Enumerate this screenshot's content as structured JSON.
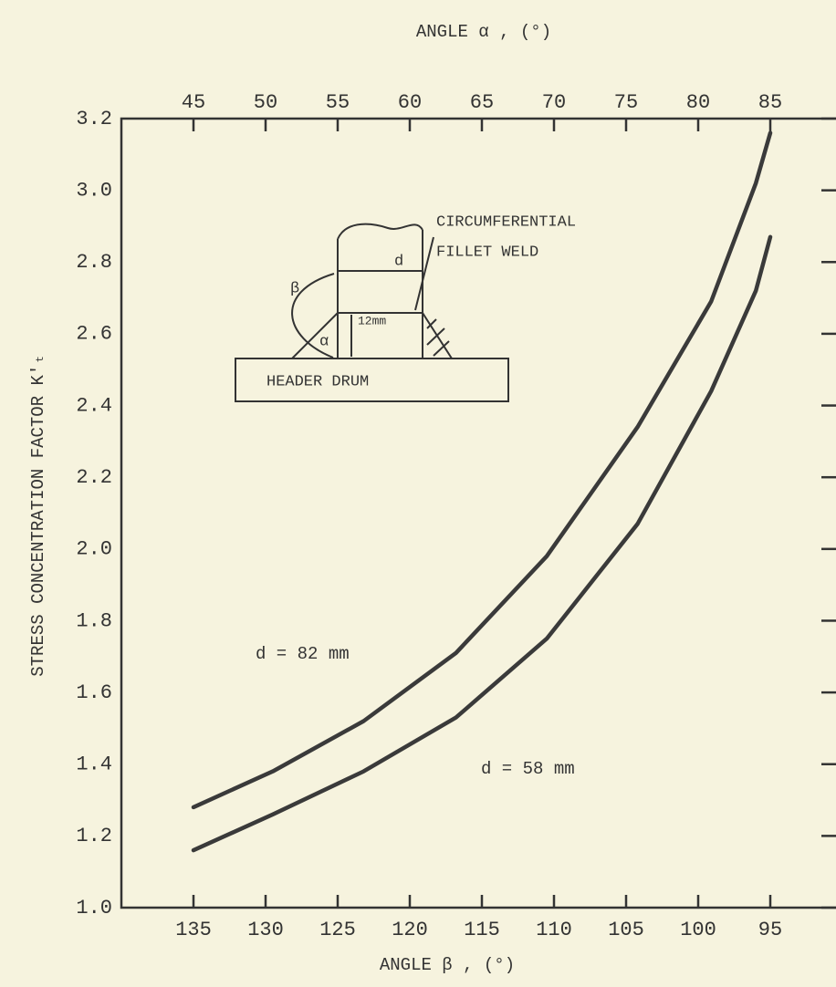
{
  "chart_data": {
    "type": "line",
    "xlabel": "ANGLE β , (°)",
    "x2label": "ANGLE α , (°)",
    "ylabel": "STRESS CONCENTRATION FACTOR K′ₜ",
    "x": [
      135,
      129.5,
      123.2,
      116.8,
      110.5,
      104.2,
      99.1,
      96,
      95
    ],
    "series": [
      {
        "name": "d = 82 mm",
        "color": "#3a3a3a",
        "values": [
          1.28,
          1.38,
          1.52,
          1.71,
          1.98,
          2.34,
          2.69,
          3.02,
          3.16
        ]
      },
      {
        "name": "d = 58 mm",
        "color": "#3a3a3a",
        "values": [
          1.16,
          1.26,
          1.38,
          1.53,
          1.75,
          2.07,
          2.44,
          2.72,
          2.87
        ]
      }
    ],
    "xlim": [
      140,
      90
    ],
    "xticks": [
      135,
      130,
      125,
      120,
      115,
      110,
      105,
      100,
      95
    ],
    "x2lim": [
      40,
      90
    ],
    "x2ticks": [
      45,
      50,
      55,
      60,
      65,
      70,
      75,
      80,
      85
    ],
    "ylim": [
      1.0,
      3.2
    ],
    "yticks": [
      {
        "value": 1,
        "label": "1.0"
      },
      1.2,
      1.4,
      1.6,
      1.8,
      {
        "value": 2,
        "label": "2.0"
      },
      2.2,
      2.4,
      2.6,
      2.8,
      {
        "value": 3,
        "label": "3.0"
      },
      3.2
    ],
    "grid": false,
    "inset_labels": [
      "CIRCUMFERENTIAL",
      "FILLET WELD",
      "HEADER DRUM",
      "d",
      "β",
      "12mm",
      "α"
    ]
  }
}
